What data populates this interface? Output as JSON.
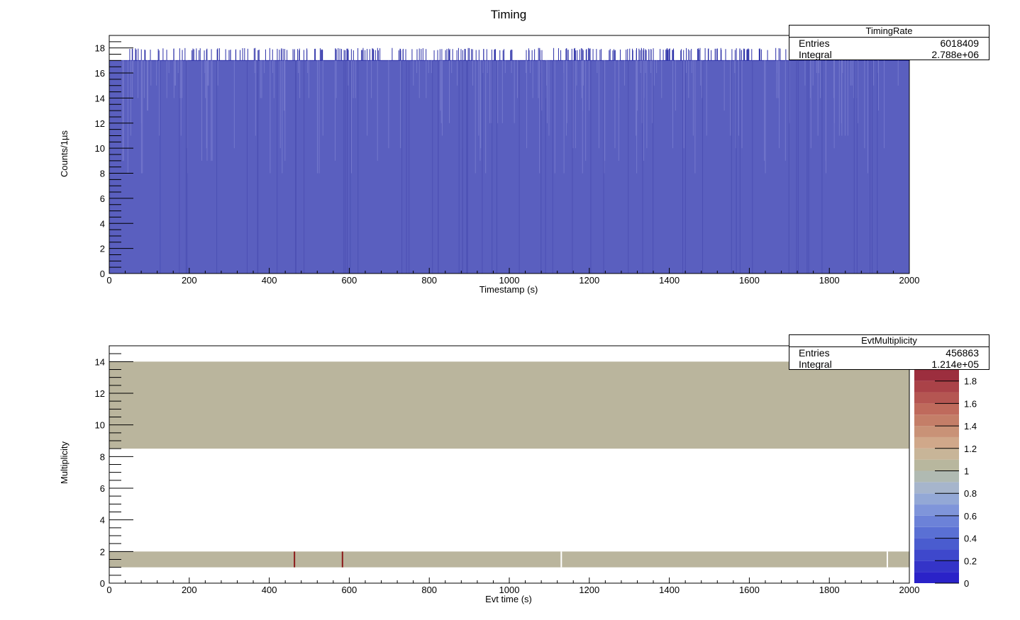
{
  "canvas_title": "Timing",
  "chart_data": [
    {
      "type": "bar",
      "subtype": "histogram",
      "name": "TimingRate",
      "xlabel": "Timestamp (s)",
      "ylabel": "Counts/1µs",
      "xlim": [
        0,
        2000
      ],
      "ylim": [
        0,
        19
      ],
      "xticks": [
        0,
        200,
        400,
        600,
        800,
        1000,
        1200,
        1400,
        1600,
        1800,
        2000
      ],
      "yticks": [
        0,
        2,
        4,
        6,
        8,
        10,
        12,
        14,
        16,
        18
      ],
      "fill_color": "#5a5fbf",
      "line_color": "#2c30a8",
      "base_value": 17,
      "stats": {
        "title": "TimingRate",
        "entries_label": "Entries",
        "entries": "6018409",
        "integral_label": "Integral",
        "integral": "2.788e+06"
      }
    },
    {
      "type": "heatmap",
      "name": "EvtMultiplicity",
      "xlabel": "Evt time (s)",
      "ylabel": "Multiplicity",
      "xlim": [
        0,
        2000
      ],
      "ylim": [
        0,
        15
      ],
      "xticks": [
        0,
        200,
        400,
        600,
        800,
        1000,
        1200,
        1400,
        1600,
        1800,
        2000
      ],
      "yticks": [
        0,
        2,
        4,
        6,
        8,
        10,
        12,
        14
      ],
      "bands": [
        {
          "y": [
            8.5,
            14
          ],
          "x": [
            0,
            2000
          ],
          "z": 1.2
        },
        {
          "y": [
            1,
            2
          ],
          "x": [
            0,
            2000
          ],
          "z": 1.2
        }
      ],
      "special_cells": [
        {
          "x": 463,
          "y": [
            1,
            2
          ],
          "z": 2.0
        },
        {
          "x": 583,
          "y": [
            1,
            2
          ],
          "z": 2.0
        },
        {
          "x": 1130,
          "y": [
            1,
            2
          ],
          "z": 0
        },
        {
          "x": 1945,
          "y": [
            1,
            2
          ],
          "z": 0
        }
      ],
      "colorbar": {
        "zlim": [
          0,
          2
        ],
        "ticks": [
          "0",
          "0.2",
          "0.4",
          "0.6",
          "0.8",
          "1",
          "1.2",
          "1.4",
          "1.6",
          "1.8"
        ],
        "colors": [
          "#2a22c8",
          "#3434c8",
          "#3e48cc",
          "#4a5ccf",
          "#5a70d4",
          "#6c82d8",
          "#7f95da",
          "#93a8d6",
          "#a6b5cc",
          "#b0bab2",
          "#b8b79e",
          "#c8b598",
          "#d0a88a",
          "#c99277",
          "#c47e68",
          "#bf6a5c",
          "#b55652",
          "#aa4248",
          "#9c2e3e",
          "#8a1f33"
        ],
        "band_color": "#bab59d",
        "red_color": "#8b1a1a"
      },
      "stats": {
        "title": "EvtMultiplicity",
        "entries_label": "Entries",
        "entries": "456863",
        "integral_label": "Integral",
        "integral": "1.214e+05"
      }
    }
  ]
}
